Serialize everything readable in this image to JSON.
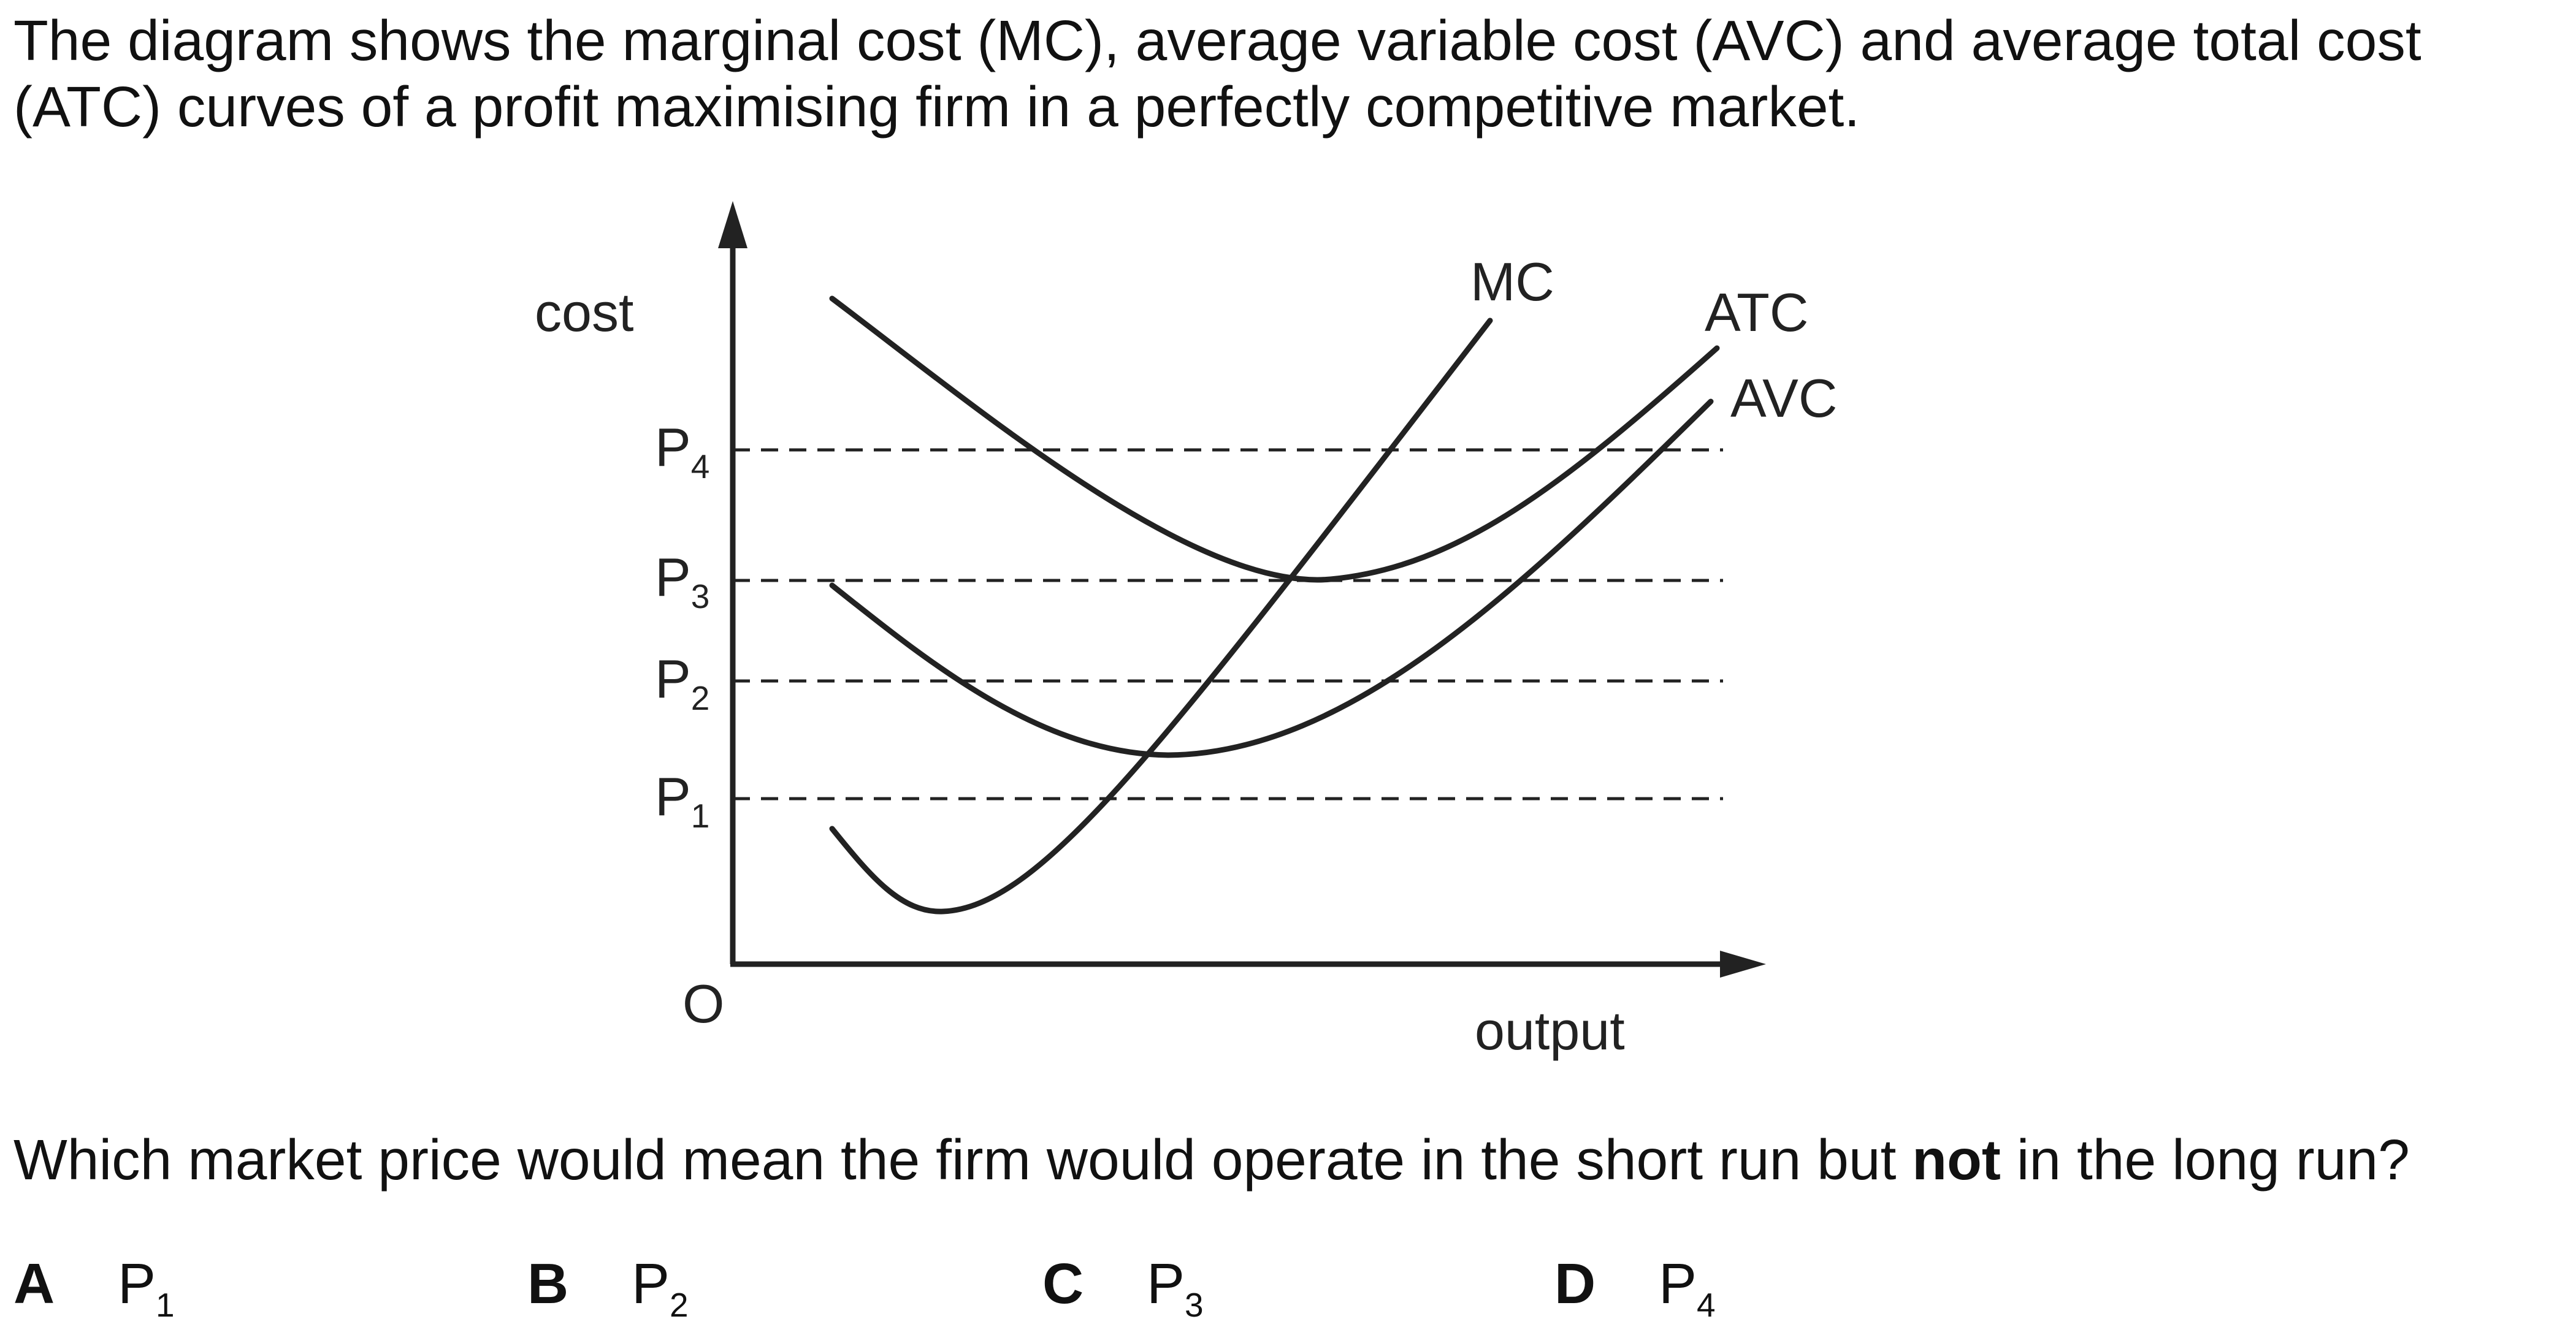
{
  "intro_text": "The diagram shows the marginal cost (MC), average variable cost (AVC) and average total cost (ATC) curves of a profit maximising firm in a perfectly competitive market.",
  "diagram": {
    "y_axis_label": "cost",
    "x_axis_label": "output",
    "origin_label": "O",
    "price_levels": [
      {
        "base": "P",
        "sub": "1"
      },
      {
        "base": "P",
        "sub": "2"
      },
      {
        "base": "P",
        "sub": "3"
      },
      {
        "base": "P",
        "sub": "4"
      }
    ],
    "curves": [
      {
        "name": "MC"
      },
      {
        "name": "ATC"
      },
      {
        "name": "AVC"
      }
    ]
  },
  "question": {
    "before": "Which market price would mean the firm would operate in the short run but ",
    "bold": "not",
    "after": " in the long run?"
  },
  "options": [
    {
      "letter": "A",
      "base": "P",
      "sub": "1"
    },
    {
      "letter": "B",
      "base": "P",
      "sub": "2"
    },
    {
      "letter": "C",
      "base": "P",
      "sub": "3"
    },
    {
      "letter": "D",
      "base": "P",
      "sub": "4"
    }
  ]
}
